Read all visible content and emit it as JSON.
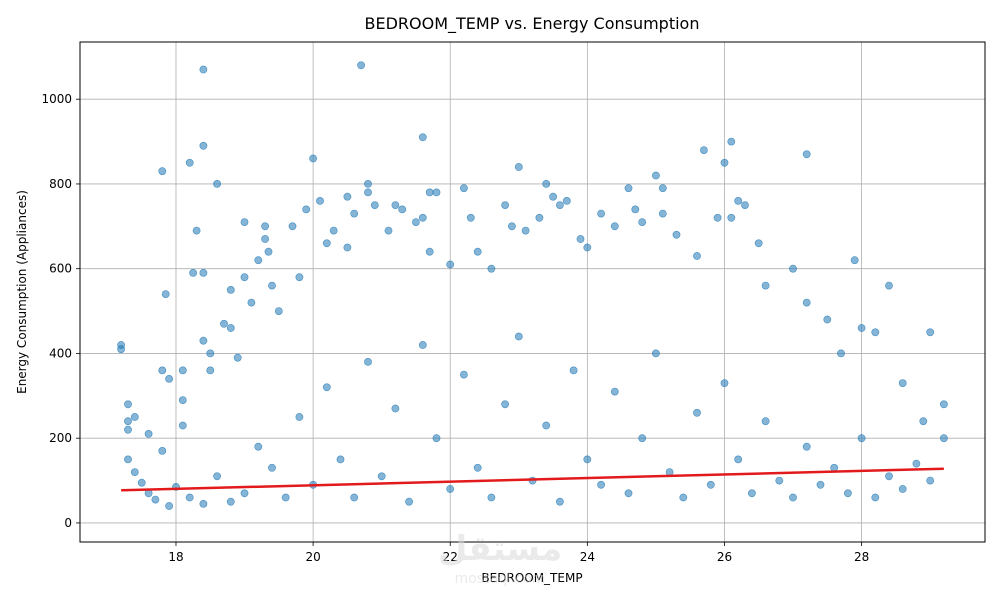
{
  "chart_data": {
    "type": "scatter",
    "title": "BEDROOM_TEMP vs. Energy Consumption",
    "xlabel": "BEDROOM_TEMP",
    "ylabel": "Energy Consumption (Appliances)",
    "xlim": [
      16.6,
      29.8
    ],
    "ylim": [
      -45,
      1135
    ],
    "xticks": [
      18,
      20,
      22,
      24,
      26,
      28
    ],
    "yticks": [
      0,
      200,
      400,
      600,
      800,
      1000
    ],
    "grid": true,
    "point_color": "#1f77b4",
    "line_color": "#e31a1c",
    "trend_line": {
      "x": [
        17.2,
        29.2
      ],
      "y": [
        77,
        128
      ]
    },
    "series": [
      {
        "points": [
          [
            17.2,
            420
          ],
          [
            17.2,
            410
          ],
          [
            17.3,
            280
          ],
          [
            17.3,
            240
          ],
          [
            17.4,
            250
          ],
          [
            17.3,
            220
          ],
          [
            17.6,
            210
          ],
          [
            17.8,
            830
          ],
          [
            17.85,
            540
          ],
          [
            17.8,
            360
          ],
          [
            17.8,
            170
          ],
          [
            17.9,
            340
          ],
          [
            18.1,
            360
          ],
          [
            18.1,
            290
          ],
          [
            18.1,
            230
          ],
          [
            18.2,
            850
          ],
          [
            18.25,
            590
          ],
          [
            18.3,
            690
          ],
          [
            18.4,
            1070
          ],
          [
            18.4,
            890
          ],
          [
            18.4,
            590
          ],
          [
            18.4,
            430
          ],
          [
            18.5,
            400
          ],
          [
            18.5,
            360
          ],
          [
            18.6,
            800
          ],
          [
            18.7,
            470
          ],
          [
            18.8,
            550
          ],
          [
            18.8,
            460
          ],
          [
            18.9,
            390
          ],
          [
            19.0,
            710
          ],
          [
            19.0,
            580
          ],
          [
            19.1,
            520
          ],
          [
            19.2,
            620
          ],
          [
            19.3,
            700
          ],
          [
            19.3,
            670
          ],
          [
            19.35,
            640
          ],
          [
            19.4,
            560
          ],
          [
            19.5,
            500
          ],
          [
            19.7,
            700
          ],
          [
            19.8,
            580
          ],
          [
            19.9,
            740
          ],
          [
            20.0,
            860
          ],
          [
            20.1,
            760
          ],
          [
            20.2,
            660
          ],
          [
            20.3,
            690
          ],
          [
            20.5,
            770
          ],
          [
            20.5,
            650
          ],
          [
            20.6,
            730
          ],
          [
            20.7,
            1080
          ],
          [
            20.8,
            800
          ],
          [
            20.8,
            780
          ],
          [
            20.9,
            750
          ],
          [
            21.1,
            690
          ],
          [
            21.2,
            750
          ],
          [
            21.3,
            740
          ],
          [
            21.5,
            710
          ],
          [
            21.6,
            720
          ],
          [
            21.6,
            910
          ],
          [
            21.7,
            780
          ],
          [
            21.8,
            780
          ],
          [
            21.7,
            640
          ],
          [
            22.0,
            610
          ],
          [
            22.2,
            790
          ],
          [
            22.3,
            720
          ],
          [
            22.4,
            640
          ],
          [
            22.6,
            600
          ],
          [
            22.8,
            750
          ],
          [
            22.9,
            700
          ],
          [
            23.0,
            840
          ],
          [
            23.1,
            690
          ],
          [
            23.3,
            720
          ],
          [
            23.4,
            800
          ],
          [
            23.5,
            770
          ],
          [
            23.6,
            750
          ],
          [
            23.7,
            760
          ],
          [
            23.9,
            670
          ],
          [
            24.0,
            650
          ],
          [
            24.2,
            730
          ],
          [
            24.4,
            700
          ],
          [
            24.6,
            790
          ],
          [
            24.7,
            740
          ],
          [
            24.8,
            710
          ],
          [
            25.0,
            820
          ],
          [
            25.1,
            790
          ],
          [
            25.1,
            730
          ],
          [
            25.3,
            680
          ],
          [
            25.6,
            630
          ],
          [
            25.7,
            880
          ],
          [
            25.9,
            720
          ],
          [
            26.0,
            850
          ],
          [
            26.1,
            900
          ],
          [
            26.1,
            720
          ],
          [
            26.2,
            760
          ],
          [
            26.3,
            750
          ],
          [
            26.5,
            660
          ],
          [
            26.6,
            560
          ],
          [
            27.0,
            600
          ],
          [
            27.2,
            870
          ],
          [
            27.2,
            520
          ],
          [
            27.5,
            480
          ],
          [
            27.7,
            400
          ],
          [
            27.9,
            620
          ],
          [
            28.0,
            460
          ],
          [
            28.2,
            450
          ],
          [
            28.4,
            560
          ],
          [
            28.6,
            330
          ],
          [
            28.9,
            240
          ],
          [
            29.0,
            450
          ],
          [
            29.2,
            280
          ],
          [
            17.3,
            150
          ],
          [
            17.4,
            120
          ],
          [
            17.5,
            95
          ],
          [
            17.6,
            70
          ],
          [
            17.7,
            55
          ],
          [
            17.9,
            40
          ],
          [
            18.0,
            85
          ],
          [
            18.2,
            60
          ],
          [
            18.4,
            45
          ],
          [
            18.6,
            110
          ],
          [
            18.8,
            50
          ],
          [
            19.0,
            70
          ],
          [
            19.2,
            180
          ],
          [
            19.4,
            130
          ],
          [
            19.6,
            60
          ],
          [
            19.8,
            250
          ],
          [
            20.0,
            90
          ],
          [
            20.2,
            320
          ],
          [
            20.4,
            150
          ],
          [
            20.6,
            60
          ],
          [
            20.8,
            380
          ],
          [
            21.0,
            110
          ],
          [
            21.2,
            270
          ],
          [
            21.4,
            50
          ],
          [
            21.6,
            420
          ],
          [
            21.8,
            200
          ],
          [
            22.0,
            80
          ],
          [
            22.2,
            350
          ],
          [
            22.4,
            130
          ],
          [
            22.6,
            60
          ],
          [
            22.8,
            280
          ],
          [
            23.0,
            440
          ],
          [
            23.2,
            100
          ],
          [
            23.4,
            230
          ],
          [
            23.6,
            50
          ],
          [
            23.8,
            360
          ],
          [
            24.0,
            150
          ],
          [
            24.2,
            90
          ],
          [
            24.4,
            310
          ],
          [
            24.6,
            70
          ],
          [
            24.8,
            200
          ],
          [
            25.0,
            400
          ],
          [
            25.2,
            120
          ],
          [
            25.4,
            60
          ],
          [
            25.6,
            260
          ],
          [
            25.8,
            90
          ],
          [
            26.0,
            330
          ],
          [
            26.2,
            150
          ],
          [
            26.4,
            70
          ],
          [
            26.6,
            240
          ],
          [
            26.8,
            100
          ],
          [
            27.0,
            60
          ],
          [
            27.2,
            180
          ],
          [
            27.4,
            90
          ],
          [
            27.6,
            130
          ],
          [
            27.8,
            70
          ],
          [
            28.0,
            200
          ],
          [
            28.2,
            60
          ],
          [
            28.4,
            110
          ],
          [
            28.6,
            80
          ],
          [
            28.8,
            140
          ],
          [
            29.0,
            100
          ],
          [
            29.2,
            200
          ]
        ]
      }
    ]
  },
  "watermark": {
    "main": "مستقل",
    "sub": "mostaql.com"
  }
}
